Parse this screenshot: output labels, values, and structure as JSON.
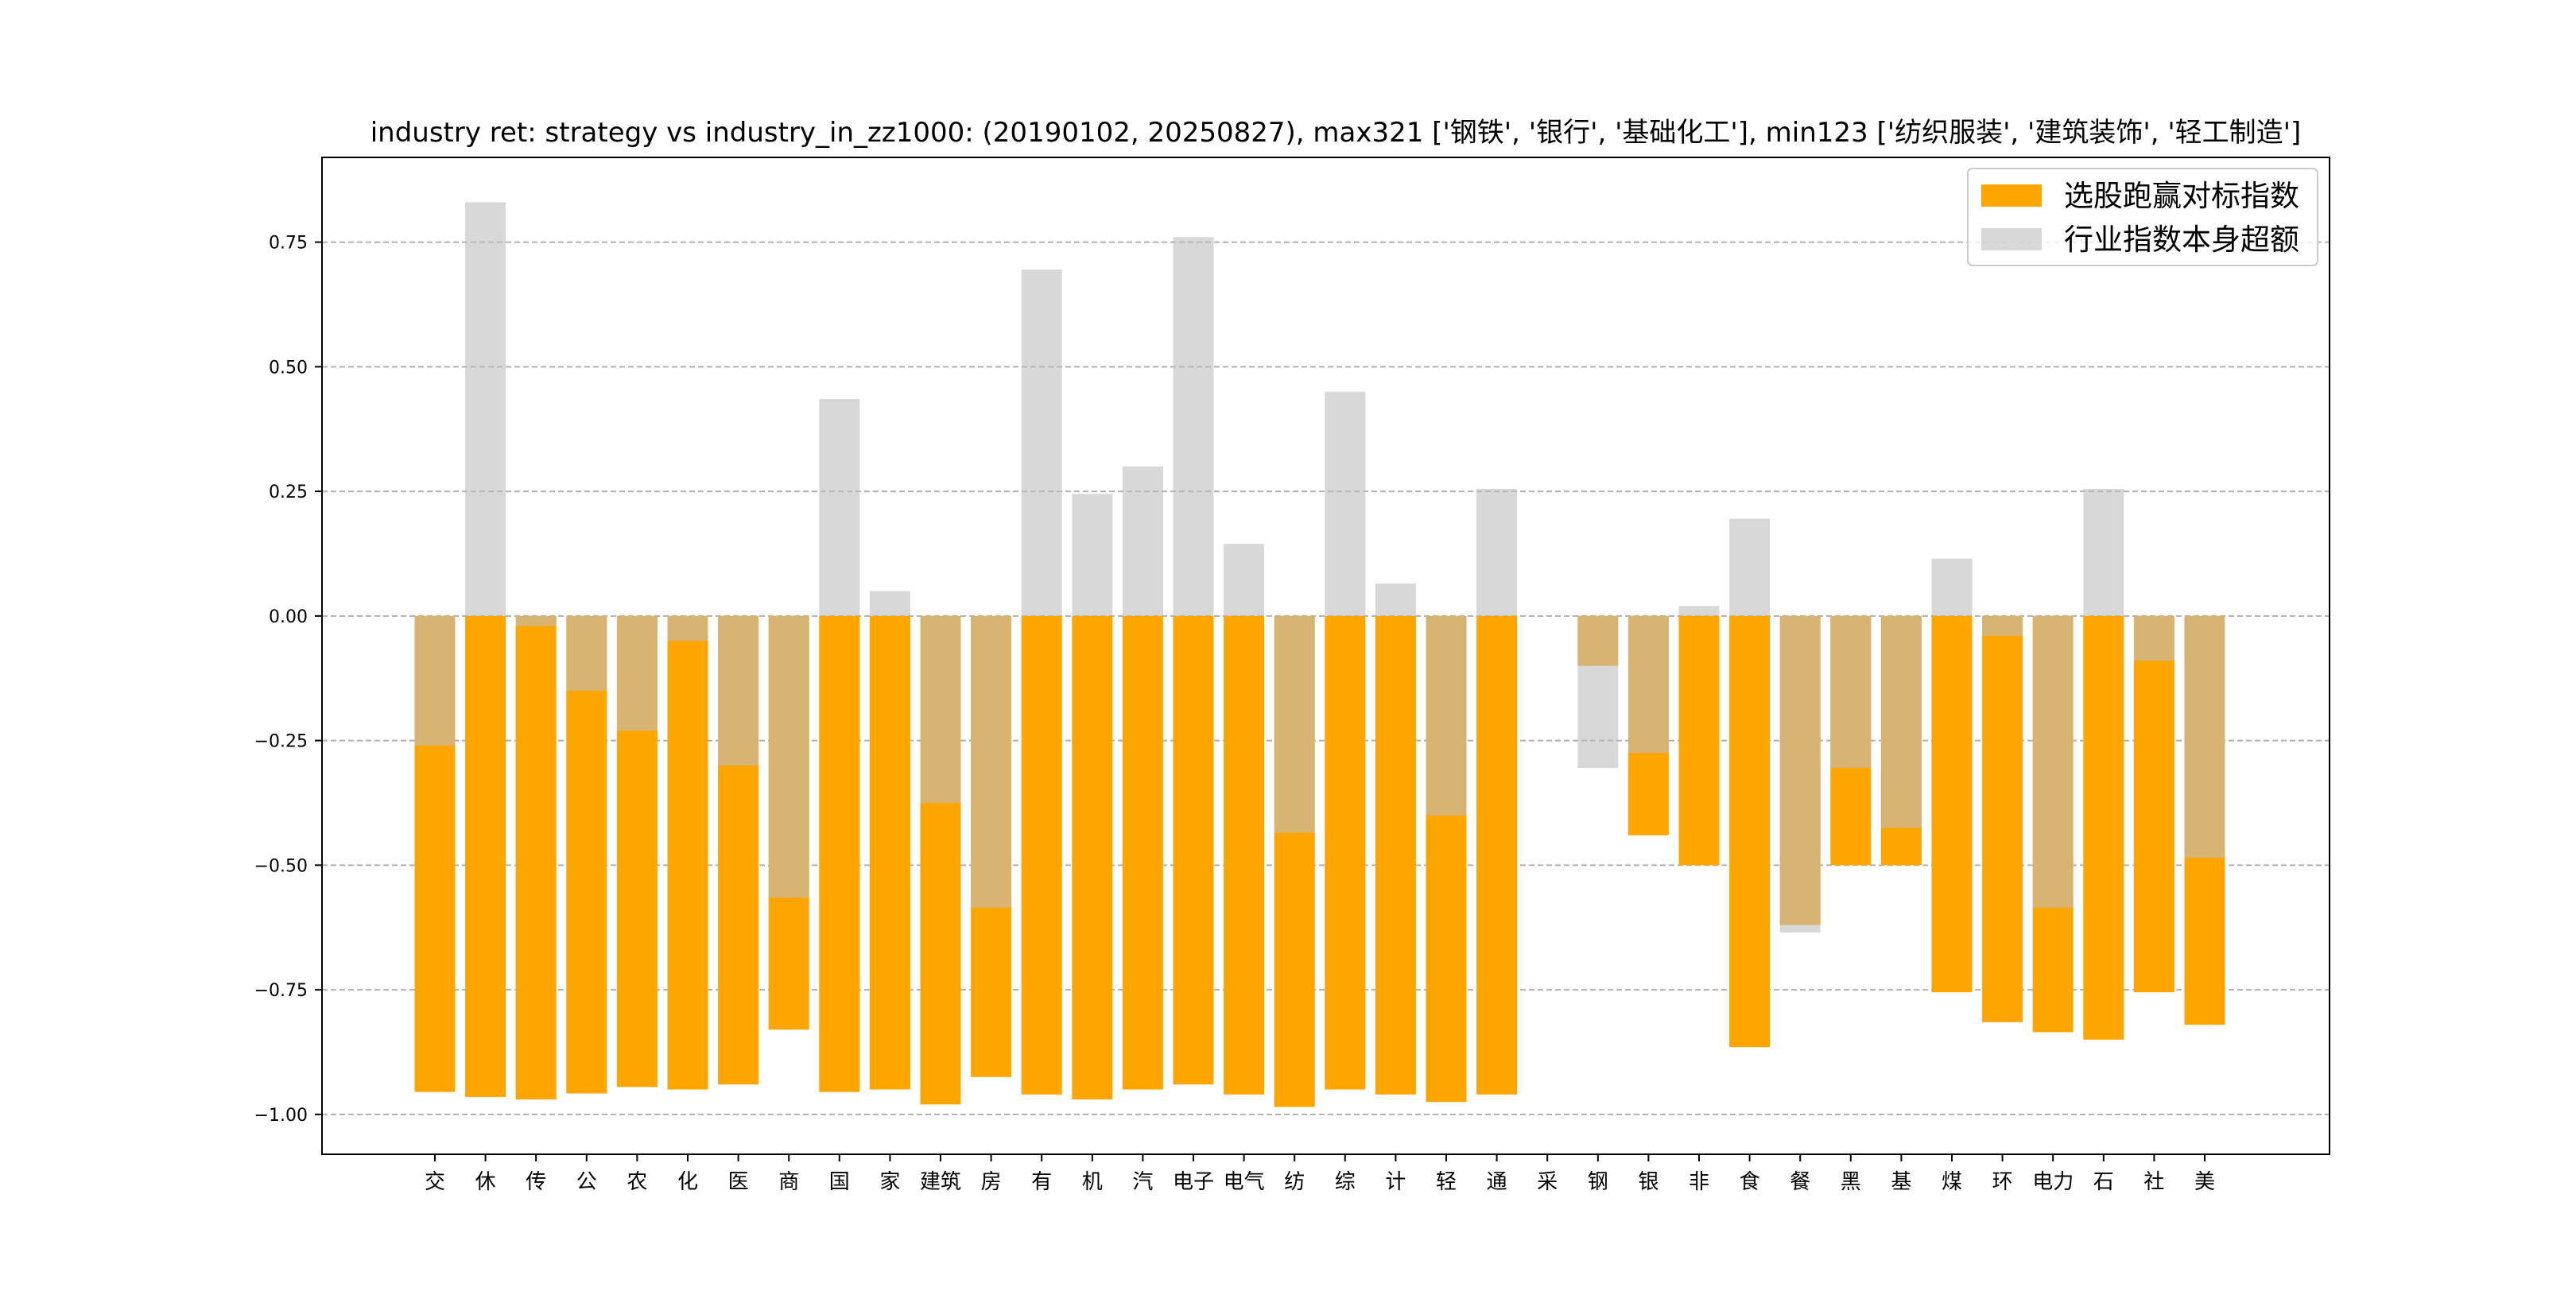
{
  "chart_data": {
    "type": "bar",
    "title": "industry ret: strategy vs industry_in_zz1000: (20190102, 20250827), max321 ['钢铁', '银行', '基础化工'], min123 ['纺织服装', '建筑装饰', '轻工制造']",
    "xlabel": "",
    "ylabel": "",
    "ylim": [
      -1.08,
      0.92
    ],
    "yticks": [
      -1.0,
      -0.75,
      -0.5,
      -0.25,
      0.0,
      0.25,
      0.5,
      0.75
    ],
    "ytick_labels": [
      "−1.00",
      "−0.75",
      "−0.50",
      "−0.25",
      "0.00",
      "0.25",
      "0.50",
      "0.75"
    ],
    "grid": "horizontal dashed",
    "legend_position": "top-right",
    "categories": [
      "交",
      "休",
      "传",
      "公",
      "农",
      "化",
      "医",
      "商",
      "国",
      "家",
      "建筑",
      "房",
      "有",
      "机",
      "汽",
      "电子",
      "电气",
      "纺",
      "综",
      "计",
      "轻",
      "通",
      "采",
      "钢",
      "银",
      "非",
      "食",
      "餐",
      "黑",
      "基",
      "煤",
      "环",
      "电力",
      "石",
      "社",
      "美"
    ],
    "series": [
      {
        "name": "选股跑赢对标指数",
        "color": "#FFA500",
        "values": [
          -0.955,
          -0.965,
          -0.97,
          -0.958,
          -0.945,
          -0.95,
          -0.94,
          -0.83,
          -0.955,
          -0.95,
          -0.98,
          -0.925,
          -0.96,
          -0.97,
          -0.95,
          -0.94,
          -0.96,
          -0.985,
          -0.95,
          -0.96,
          -0.975,
          -0.96,
          0,
          -0.1,
          -0.44,
          -0.5,
          -0.865,
          -0.62,
          -0.5,
          -0.5,
          -0.755,
          -0.815,
          -0.835,
          -0.85,
          -0.755,
          -0.82
        ]
      },
      {
        "name": "行业指数本身超额",
        "color": "#BEBEBE",
        "values": [
          -0.26,
          0.83,
          -0.02,
          -0.15,
          -0.23,
          -0.05,
          -0.3,
          -0.565,
          0.435,
          0.05,
          -0.375,
          -0.585,
          0.695,
          0.245,
          0.3,
          0.76,
          0.145,
          -0.435,
          0.45,
          0.065,
          -0.4,
          0.255,
          0,
          -0.305,
          -0.275,
          0.02,
          0.195,
          -0.635,
          -0.305,
          -0.425,
          0.115,
          -0.04,
          -0.585,
          0.255,
          -0.09,
          -0.485
        ]
      }
    ]
  }
}
